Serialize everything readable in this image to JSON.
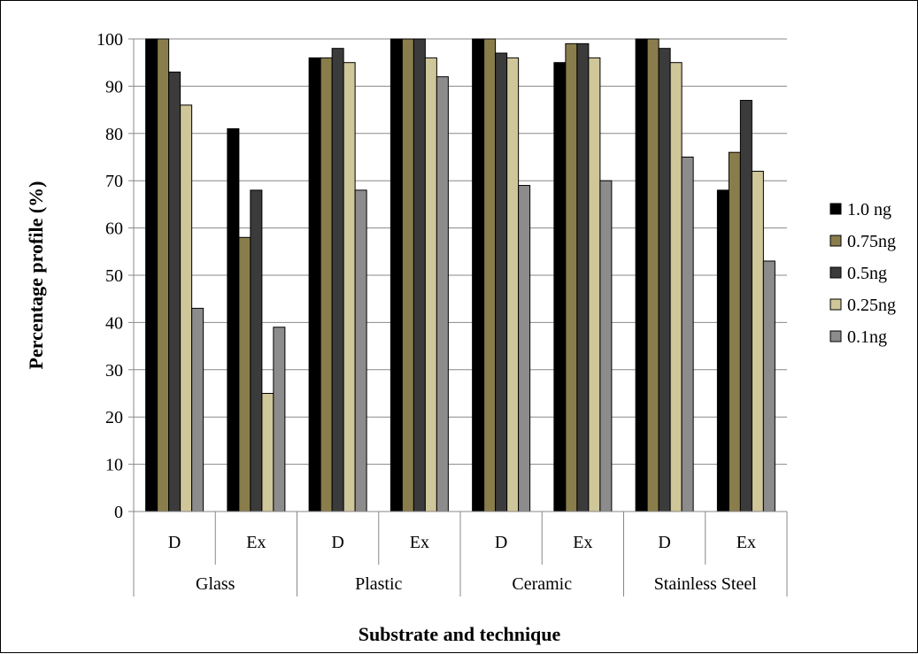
{
  "chart_data": {
    "type": "bar",
    "xlabel": "Substrate and technique",
    "ylabel": "Percentage profile (%)",
    "ylim": [
      0,
      100
    ],
    "yticks": [
      0,
      10,
      20,
      30,
      40,
      50,
      60,
      70,
      80,
      90,
      100
    ],
    "grid": "horizontal",
    "legend_position": "right",
    "groups": [
      "Glass",
      "Plastic",
      "Ceramic",
      "Stainless Steel"
    ],
    "categories": [
      "D",
      "Ex",
      "D",
      "Ex",
      "D",
      "Ex",
      "D",
      "Ex"
    ],
    "series": [
      {
        "name": "1.0 ng",
        "color": "#000000",
        "values": [
          100,
          81,
          96,
          100,
          100,
          95,
          100,
          68
        ]
      },
      {
        "name": "0.75ng",
        "color": "#8a7d4c",
        "values": [
          100,
          58,
          96,
          100,
          100,
          99,
          100,
          76
        ]
      },
      {
        "name": "0.5ng",
        "color": "#3b3b3b",
        "values": [
          93,
          68,
          98,
          100,
          97,
          99,
          98,
          87
        ]
      },
      {
        "name": "0.25ng",
        "color": "#cfc69a",
        "values": [
          86,
          25,
          95,
          96,
          96,
          96,
          95,
          72
        ]
      },
      {
        "name": "0.1ng",
        "color": "#8c8c8c",
        "values": [
          43,
          39,
          68,
          92,
          69,
          70,
          75,
          53
        ]
      }
    ]
  }
}
